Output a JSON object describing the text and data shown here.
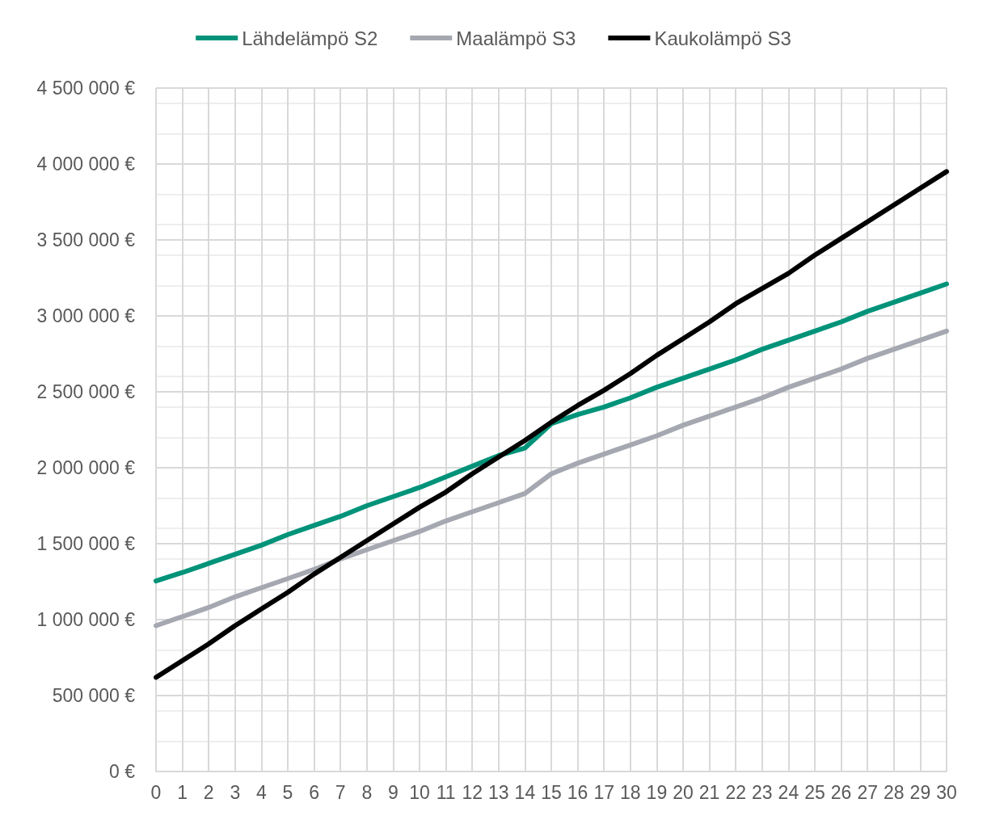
{
  "chart_data": {
    "type": "line",
    "x": [
      0,
      1,
      2,
      3,
      4,
      5,
      6,
      7,
      8,
      9,
      10,
      11,
      12,
      13,
      14,
      15,
      16,
      17,
      18,
      19,
      20,
      21,
      22,
      23,
      24,
      25,
      26,
      27,
      28,
      29,
      30
    ],
    "series": [
      {
        "name": "Lähdelämpö S2",
        "color": "#00937a",
        "values": [
          1255000,
          1310000,
          1370000,
          1430000,
          1490000,
          1560000,
          1620000,
          1680000,
          1750000,
          1810000,
          1870000,
          1940000,
          2010000,
          2080000,
          2130000,
          2290000,
          2350000,
          2400000,
          2460000,
          2530000,
          2590000,
          2650000,
          2710000,
          2780000,
          2840000,
          2900000,
          2960000,
          3030000,
          3090000,
          3150000,
          3210000
        ]
      },
      {
        "name": "Maalämpö S3",
        "color": "#a5a8b0",
        "values": [
          960000,
          1020000,
          1080000,
          1150000,
          1210000,
          1270000,
          1330000,
          1400000,
          1460000,
          1520000,
          1580000,
          1650000,
          1710000,
          1770000,
          1830000,
          1960000,
          2030000,
          2090000,
          2150000,
          2210000,
          2280000,
          2340000,
          2400000,
          2460000,
          2530000,
          2590000,
          2650000,
          2720000,
          2780000,
          2840000,
          2900000
        ]
      },
      {
        "name": "Kaukolämpö S3",
        "color": "#000000",
        "values": [
          620000,
          730000,
          840000,
          960000,
          1070000,
          1180000,
          1300000,
          1410000,
          1520000,
          1630000,
          1740000,
          1840000,
          1960000,
          2070000,
          2180000,
          2300000,
          2410000,
          2510000,
          2620000,
          2740000,
          2850000,
          2960000,
          3080000,
          3180000,
          3280000,
          3400000,
          3510000,
          3620000,
          3730000,
          3840000,
          3950000
        ]
      }
    ],
    "xlim": [
      0,
      30
    ],
    "xticks": [
      0,
      1,
      2,
      3,
      4,
      5,
      6,
      7,
      8,
      9,
      10,
      11,
      12,
      13,
      14,
      15,
      16,
      17,
      18,
      19,
      20,
      21,
      22,
      23,
      24,
      25,
      26,
      27,
      28,
      29,
      30
    ],
    "ylim": [
      0,
      4500000
    ],
    "yticks": [
      {
        "value": 0,
        "label": "0 €"
      },
      {
        "value": 500000,
        "label": "500 000 €"
      },
      {
        "value": 1000000,
        "label": "1 000 000 €"
      },
      {
        "value": 1500000,
        "label": "1 500 000 €"
      },
      {
        "value": 2000000,
        "label": "2 000 000 €"
      },
      {
        "value": 2500000,
        "label": "2 500 000 €"
      },
      {
        "value": 3000000,
        "label": "3 000 000 €"
      },
      {
        "value": 3500000,
        "label": "3 500 000 €"
      },
      {
        "value": 4000000,
        "label": "4 000 000 €"
      },
      {
        "value": 4500000,
        "label": "4 500 000 €"
      }
    ],
    "grid": true,
    "legend": "top",
    "marker": "none",
    "line_style": "solid"
  }
}
